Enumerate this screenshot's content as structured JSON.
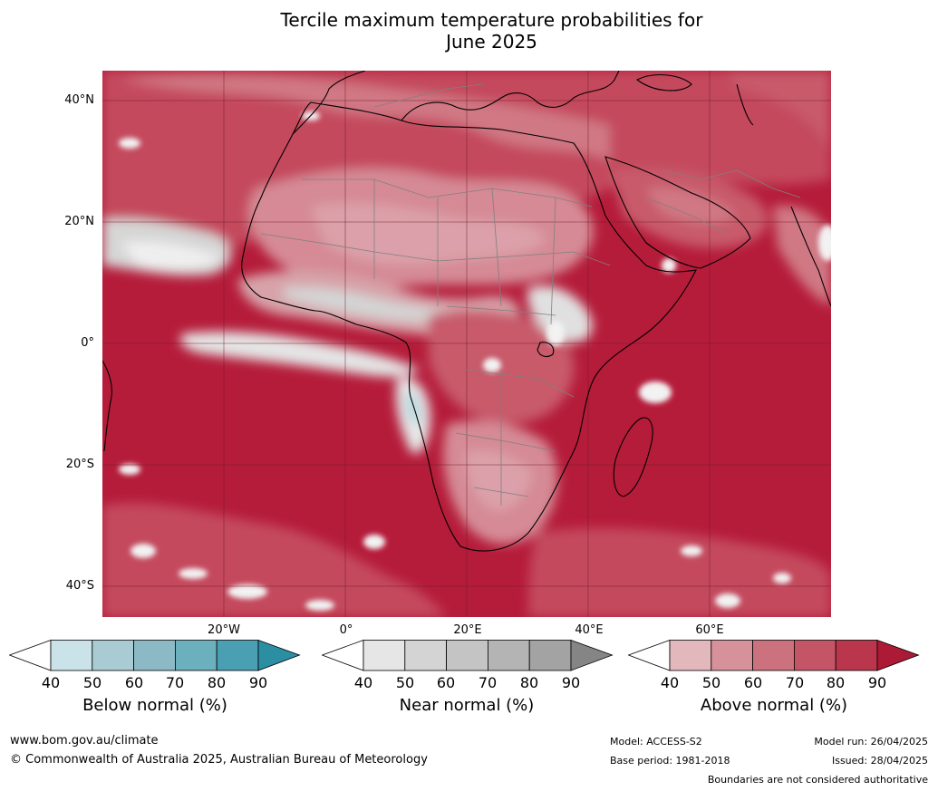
{
  "title": {
    "line1": "Tercile maximum temperature probabilities for",
    "line2": "June 2025"
  },
  "map": {
    "region": "Africa and surrounding oceans",
    "lat_labels": [
      "40°N",
      "20°N",
      "0°",
      "20°S",
      "40°S"
    ],
    "lon_labels": [
      "20°W",
      "0°",
      "20°E",
      "40°E",
      "60°E"
    ]
  },
  "colorbars": [
    {
      "label": "Below normal (%)",
      "ticks": [
        "40",
        "50",
        "60",
        "70",
        "80",
        "90"
      ],
      "colors": [
        "#ffffff",
        "#c9e3e9",
        "#a9ccd4",
        "#8bbac6",
        "#6cafbd",
        "#4aa0b2",
        "#2b8ea3"
      ]
    },
    {
      "label": "Near normal (%)",
      "ticks": [
        "40",
        "50",
        "60",
        "70",
        "80",
        "90"
      ],
      "colors": [
        "#ffffff",
        "#e6e6e6",
        "#d4d4d4",
        "#c4c4c4",
        "#b4b4b4",
        "#a3a3a3",
        "#858585"
      ]
    },
    {
      "label": "Above normal (%)",
      "ticks": [
        "40",
        "50",
        "60",
        "70",
        "80",
        "90"
      ],
      "colors": [
        "#ffffff",
        "#e2b8bd",
        "#d7919b",
        "#cc727f",
        "#c45566",
        "#b9364d",
        "#ad1a36"
      ]
    }
  ],
  "footer": {
    "website": "www.bom.gov.au/climate",
    "copyright": "© Commonwealth of Australia 2025, Australian Bureau of Meteorology",
    "model": "Model: ACCESS-S2",
    "base_period": "Base period: 1981-2018",
    "model_run": "Model run: 26/04/2025",
    "issued": "Issued: 28/04/2025",
    "disclaimer": "Boundaries are not considered authoritative"
  }
}
